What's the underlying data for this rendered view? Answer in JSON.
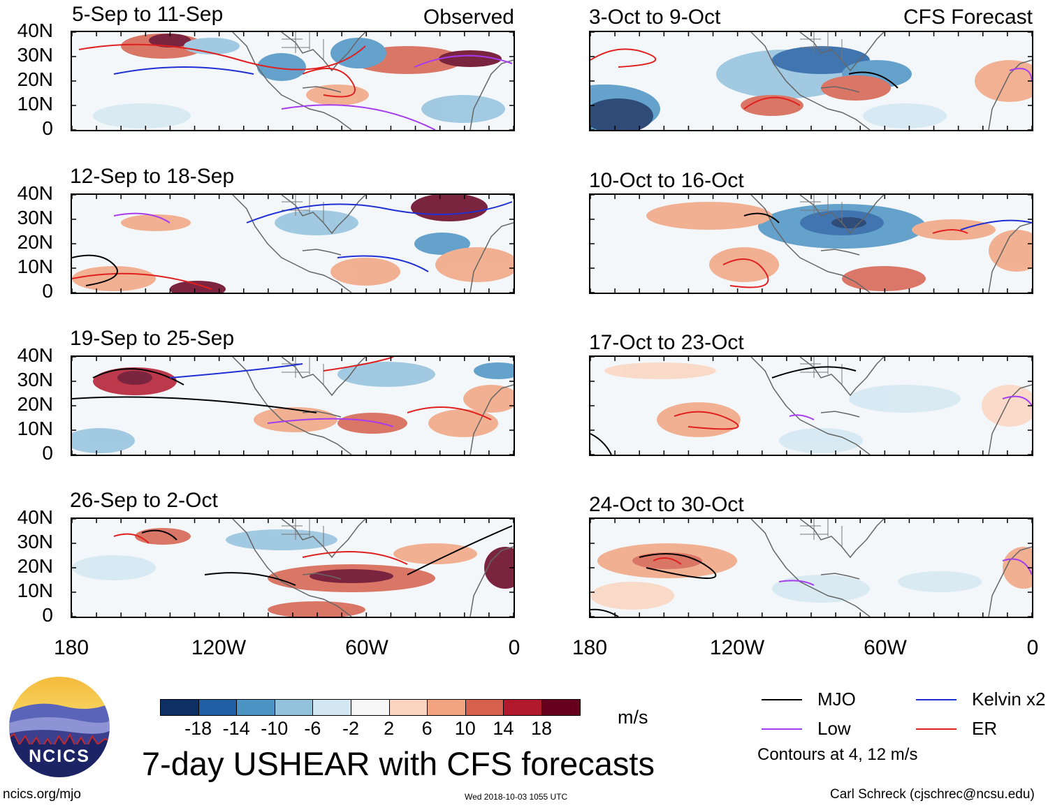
{
  "panels": {
    "observed_label": "Observed",
    "forecast_label": "CFS Forecast",
    "left": [
      {
        "title": "5-Sep to 11-Sep"
      },
      {
        "title": "12-Sep to 18-Sep"
      },
      {
        "title": "19-Sep to 25-Sep"
      },
      {
        "title": "26-Sep to 2-Oct"
      }
    ],
    "right": [
      {
        "title": "3-Oct to 9-Oct"
      },
      {
        "title": "10-Oct to 16-Oct"
      },
      {
        "title": "17-Oct to 23-Oct"
      },
      {
        "title": "24-Oct to 30-Oct"
      }
    ]
  },
  "axes": {
    "lat_labels": [
      "40N",
      "30N",
      "20N",
      "10N",
      "0"
    ],
    "lon_labels": [
      "180",
      "120W",
      "60W",
      "0"
    ]
  },
  "colorbar": {
    "colors": [
      "#0d2f63",
      "#215fa4",
      "#4b94c4",
      "#93c2dd",
      "#d3e7f1",
      "#f7f7f7",
      "#fbd5c0",
      "#f2a481",
      "#d6604d",
      "#b2192c",
      "#67001f"
    ],
    "labels": [
      "-18",
      "-14",
      "-10",
      "-6",
      "-2",
      "2",
      "6",
      "10",
      "14",
      "18"
    ],
    "units": "m/s"
  },
  "title": "7-day USHEAR with CFS forecasts",
  "legend": {
    "items": [
      {
        "label": "MJO",
        "color": "#000000"
      },
      {
        "label": "Kelvin x2",
        "color": "#1f2fd6"
      },
      {
        "label": "Low",
        "color": "#a63cf0"
      },
      {
        "label": "ER",
        "color": "#e01f1f"
      }
    ],
    "note": "Contours at 4, 12 m/s"
  },
  "logo": {
    "text": "NCICS"
  },
  "footer": {
    "url": "ncics.org/mjo",
    "timestamp": "Wed 2018-10-03 1055 UTC",
    "credit": "Carl Schreck (cjschrec@ncsu.edu)"
  }
}
